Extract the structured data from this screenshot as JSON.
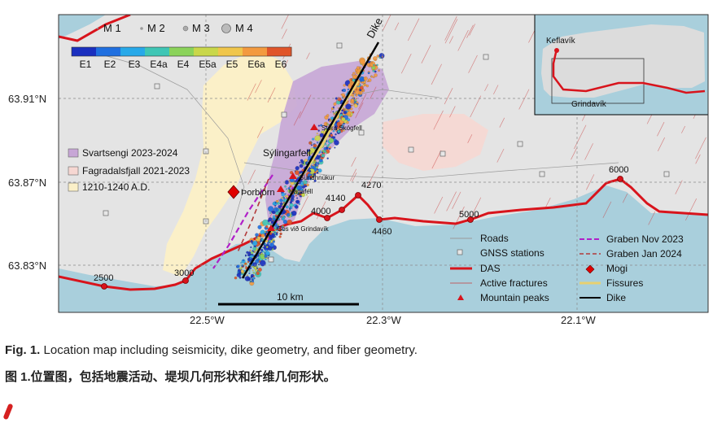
{
  "figure": {
    "colors": {
      "sea": "#a9cfdc",
      "land": "#e4e4e4",
      "svartsengi": "#c7a6d6",
      "fagradalsfjall": "#f6d7d2",
      "ad1210": "#fbf0c8",
      "das": "#d8141c",
      "graben_nov": "#b020c8",
      "graben_jan": "#b23a3a",
      "fissures": "#e8d070",
      "fractures": "#c73b3b"
    },
    "axes": {
      "lat_ticks": [
        "63.91°N",
        "63.87°N",
        "63.83°N"
      ],
      "lon_ticks": [
        "22.5°W",
        "22.3°W",
        "22.1°W"
      ]
    },
    "magnitude_legend": [
      "M 1",
      "M 2",
      "M 3",
      "M 4"
    ],
    "time_colorbar": {
      "labels": [
        "E1",
        "E2",
        "E3",
        "E4a",
        "E4",
        "E5a",
        "E5",
        "E6a",
        "E6"
      ],
      "colors": [
        "#1a2fbf",
        "#1f6fe0",
        "#27a9e9",
        "#3fc6b5",
        "#8bd35a",
        "#c9d74a",
        "#f0c64b",
        "#f39a3f",
        "#e0552a"
      ]
    },
    "eruption_legend": [
      {
        "label": "Svartsengi 2023-2024",
        "color": "#c7a6d6"
      },
      {
        "label": "Fagradalsfjall 2021-2023",
        "color": "#f6d7d2"
      },
      {
        "label": "1210-1240 A.D.",
        "color": "#fbf0c8"
      }
    ],
    "place_labels": {
      "dike": "Dike",
      "stora_skogfell": "Stóra Skógfell",
      "sylingarfell": "Sýlingarfell",
      "sundhnukur": "Sundhnúkur",
      "hagafell": "Hagafell",
      "thorbjorn": "Þorbjörn",
      "gos_vid_grindavik": "Gos við Grindavík"
    },
    "das_distances": [
      "2500",
      "3000",
      "4000",
      "4140",
      "4270",
      "4460",
      "5000",
      "6000"
    ],
    "scale_bar": "10 km",
    "map_legend_left": [
      "Roads",
      "GNSS stations",
      "DAS",
      "Active fractures",
      "Mountain peaks"
    ],
    "map_legend_right": [
      "Graben Nov 2023",
      "Graben Jan 2024",
      "Mogi",
      "Fissures",
      "Dike"
    ],
    "inset_labels": {
      "keflavik": "Keflavík",
      "grindavik": "Grindavík"
    }
  },
  "caption": {
    "prefix": "Fig. 1.",
    "text": "Location map including seismicity, dike geometry, and fiber geometry.",
    "zh": "图 1.位置图，包括地震活动、堤坝几何形状和纤维几何形状。"
  }
}
